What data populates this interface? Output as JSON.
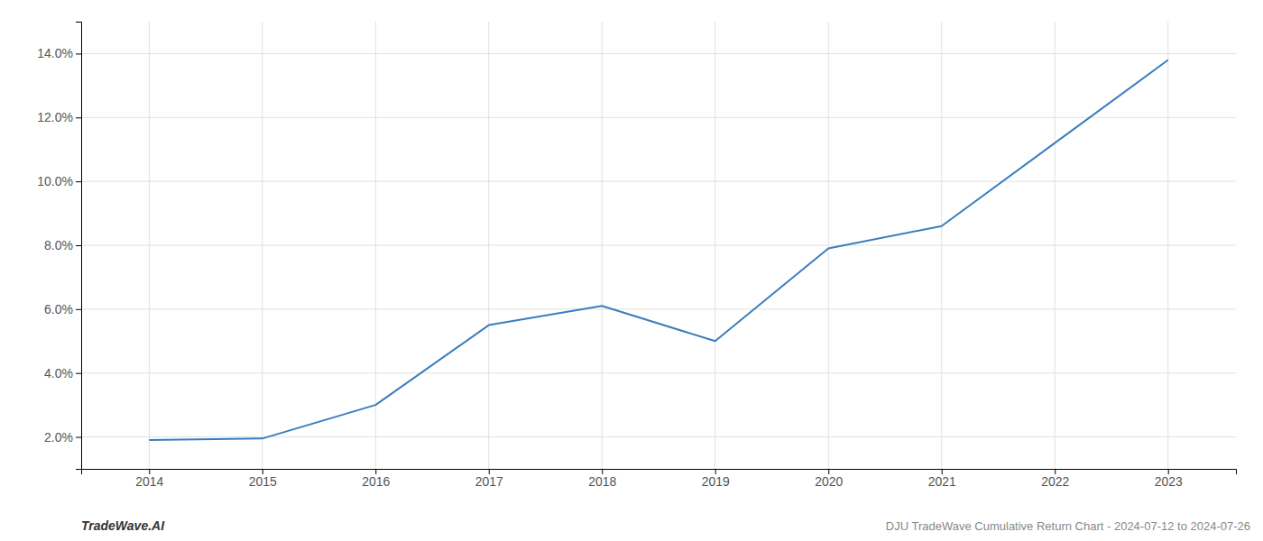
{
  "chart_data": {
    "type": "line",
    "title": "DJU TradeWave Cumulative Return Chart - 2024-07-12 to 2024-07-26",
    "annotations": [
      "TradeWave.AI"
    ],
    "x": [
      2014,
      2015,
      2016,
      2017,
      2018,
      2019,
      2020,
      2021,
      2022,
      2023
    ],
    "values": [
      1.9,
      1.95,
      3.0,
      5.5,
      6.1,
      5.0,
      7.9,
      8.6,
      11.2,
      13.8
    ],
    "color": "#3a7ebf",
    "xlim": [
      2013.4,
      2023.6
    ],
    "xticks": [
      2014,
      2015,
      2016,
      2017,
      2018,
      2019,
      2020,
      2021,
      2022,
      2023
    ],
    "ylim": [
      1.0,
      15.0
    ],
    "yticks": [
      {
        "value": 2.0,
        "label": "2.0%"
      },
      {
        "value": 4.0,
        "label": "4.0%"
      },
      {
        "value": 6.0,
        "label": "6.0%"
      },
      {
        "value": 8.0,
        "label": "8.0%"
      },
      {
        "value": 10.0,
        "label": "10.0%"
      },
      {
        "value": 12.0,
        "label": "12.0%"
      },
      {
        "value": 14.0,
        "label": "14.0%"
      }
    ],
    "grid": true
  }
}
